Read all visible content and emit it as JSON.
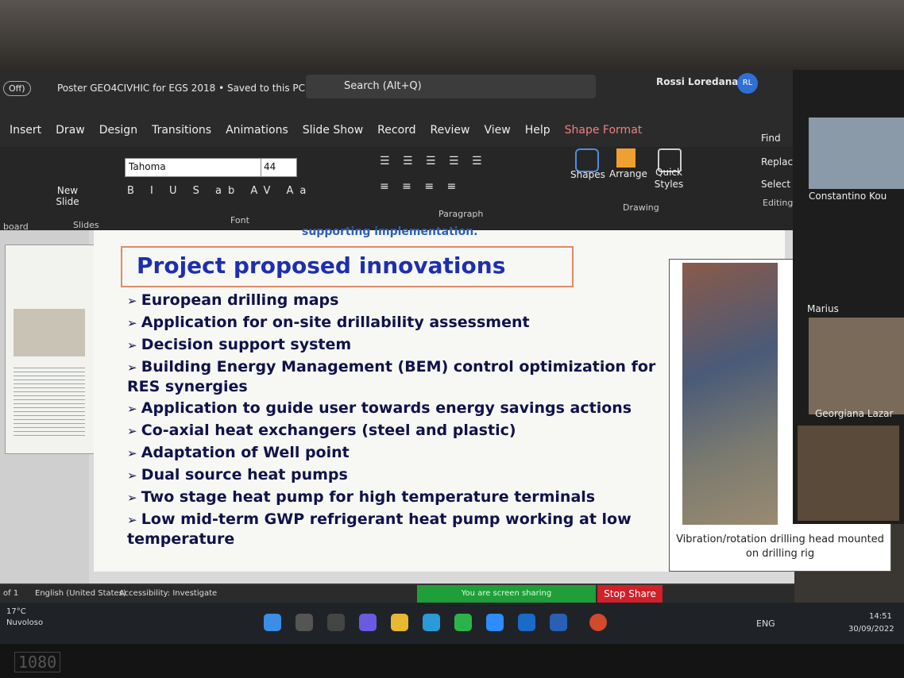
{
  "window": {
    "autosave": "Off)",
    "file_title": "Poster GEO4CIVHIC for EGS 2018 • Saved to this PC",
    "search": "Search (Alt+Q)",
    "user_name": "Rossi Loredana",
    "user_initials": "RL"
  },
  "tabs": [
    "Insert",
    "Draw",
    "Design",
    "Transitions",
    "Animations",
    "Slide Show",
    "Record",
    "Review",
    "View",
    "Help",
    "Shape Format"
  ],
  "ribbon": {
    "new_slide": "New Slide",
    "slides_group": "Slides",
    "clipboard_group": "board",
    "font_name": "Tahoma",
    "font_size": "44",
    "font_group": "Font",
    "paragraph_group": "Paragraph",
    "shapes": "Shapes",
    "arrange": "Arrange",
    "quick_styles": "Quick Styles",
    "drawing_group": "Drawing",
    "find": "Find",
    "replace": "Replace",
    "select": "Select",
    "editing_group": "Editing"
  },
  "slide": {
    "top_text": "supporting implementation.",
    "title": "Project proposed innovations",
    "bullets": [
      "European drilling maps",
      "Application for on-site drillability assessment",
      "Decision support system",
      "Building Energy Management (BEM) control optimization for RES synergies",
      "Application to guide  user towards energy savings actions",
      "Co-axial heat exchangers (steel and plastic)",
      "Adaptation of Well point",
      "Dual source heat pumps",
      "Two stage heat pump for high temperature terminals",
      "Low mid-term GWP refrigerant heat pump working at low temperature"
    ],
    "caption": "Vibration/rotation drilling head mounted on drilling rig"
  },
  "participants": [
    "Constantino Kou",
    "Marius",
    "Georgiana Lazar"
  ],
  "status_bar": {
    "slide_count": "of 1",
    "language": "English (United States)",
    "accessibility": "Accessibility: Investigate",
    "sharing": "You are screen sharing",
    "stop_share": "Stop Share"
  },
  "taskbar": {
    "temperature": "17°C",
    "weather": "Nuvoloso",
    "language": "ENG",
    "time": "14:51",
    "date": "30/09/2022"
  },
  "bezel_label": "1080"
}
